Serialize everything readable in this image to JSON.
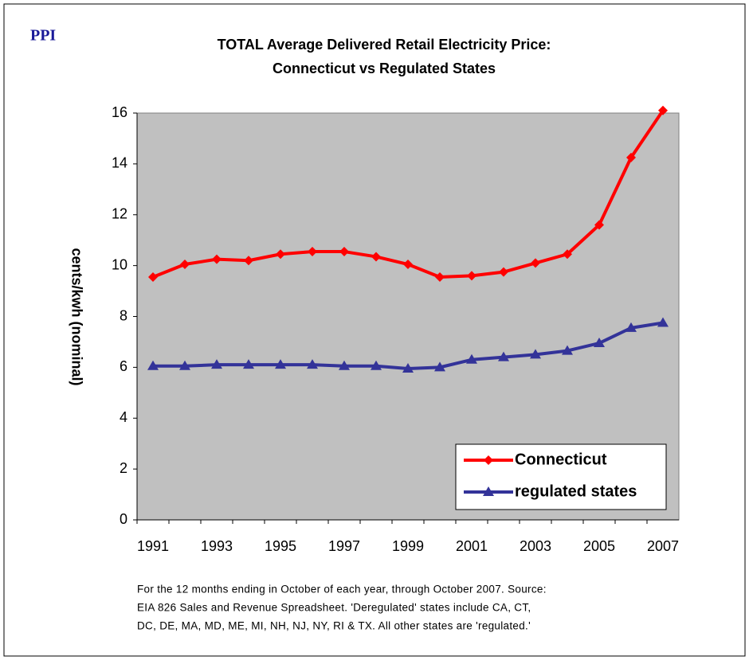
{
  "chart_data": {
    "type": "line",
    "brand": "PPI",
    "title": [
      "TOTAL Average Delivered Retail Electricity Price:",
      "Connecticut vs Regulated States"
    ],
    "y_label": "cents/kwh (nominal)",
    "categories": [
      "1991",
      null,
      "1993",
      null,
      "1995",
      null,
      "1997",
      null,
      "1999",
      null,
      "2001",
      null,
      "2003",
      null,
      "2005",
      null,
      "2007"
    ],
    "series": [
      {
        "name": "Connecticut",
        "color": "#ff0000",
        "marker": "diamond",
        "values": [
          9.55,
          10.05,
          10.25,
          10.2,
          10.45,
          10.55,
          10.55,
          10.35,
          10.05,
          9.55,
          9.6,
          9.75,
          10.1,
          10.45,
          11.6,
          14.25,
          16.1
        ]
      },
      {
        "name": "regulated states",
        "color": "#333399",
        "marker": "triangle",
        "values": [
          6.05,
          6.05,
          6.1,
          6.1,
          6.1,
          6.1,
          6.05,
          6.05,
          5.95,
          6.0,
          6.3,
          6.4,
          6.5,
          6.65,
          6.95,
          7.55,
          7.75
        ]
      }
    ],
    "ylim": [
      0,
      16
    ],
    "yticks": [
      0,
      2,
      4,
      6,
      8,
      10,
      12,
      14,
      16
    ],
    "plot_background": "#c0c0c0",
    "grid": false,
    "legend": "lower right",
    "footnote": [
      "For the 12 months ending in October of each year, through October 2007.  Source:",
      "EIA 826 Sales and Revenue Spreadsheet.  'Deregulated' states include CA, CT,",
      "DC, DE, MA, MD, ME, MI, NH, NJ, NY, RI & TX.  All other states are 'regulated.'"
    ]
  }
}
